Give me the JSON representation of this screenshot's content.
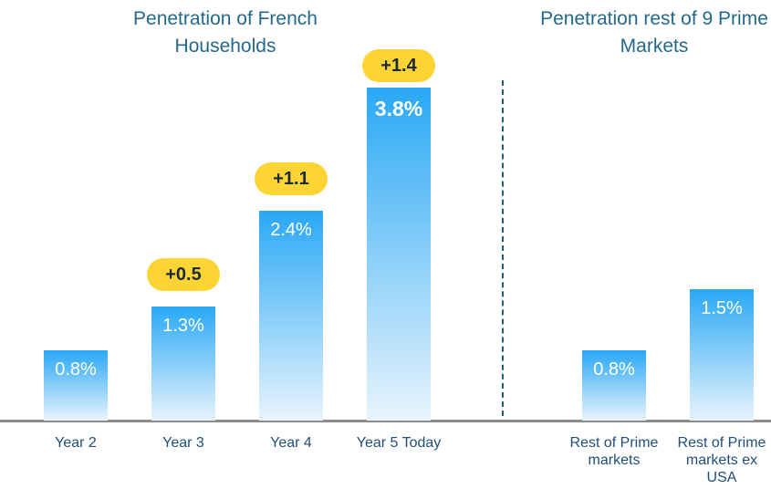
{
  "chart_data": [
    {
      "type": "bar",
      "title": "Penetration of French Households",
      "categories": [
        "Year 2",
        "Year 3",
        "Year 4",
        "Year 5 Today"
      ],
      "values": [
        0.8,
        1.3,
        2.4,
        3.8
      ],
      "value_labels": [
        "0.8%",
        "1.3%",
        "2.4%",
        "3.8%"
      ],
      "changes": [
        null,
        0.5,
        1.1,
        1.4
      ],
      "change_labels": [
        null,
        "+0.5",
        "+1.1",
        "+1.4"
      ],
      "color": "#29a8f5",
      "ylim": [
        0,
        4.8
      ]
    },
    {
      "type": "bar",
      "title": "Penetration rest of 9 Prime Markets",
      "categories": [
        "Rest of Prime markets",
        "Rest of Prime markets ex USA"
      ],
      "values": [
        0.8,
        1.5
      ],
      "value_labels": [
        "0.8%",
        "1.5%"
      ],
      "color": "#29a8f5",
      "ylim": [
        0,
        4.8
      ]
    }
  ]
}
